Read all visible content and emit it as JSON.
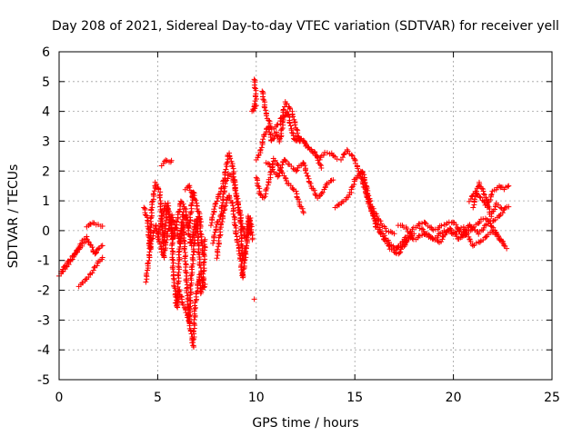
{
  "chart_data": {
    "type": "scatter",
    "title": "Day 208 of 2021, Sidereal Day-to-day VTEC variation (SDTVAR) for receiver yell",
    "xlabel": "GPS time / hours",
    "ylabel": "SDTVAR / TECUs",
    "xlim": [
      0,
      25
    ],
    "ylim": [
      -5,
      6
    ],
    "xticks": [
      0,
      5,
      10,
      15,
      20,
      25
    ],
    "yticks": [
      -5,
      -4,
      -3,
      -2,
      -1,
      0,
      1,
      2,
      3,
      4,
      5,
      6
    ],
    "grid": true,
    "marker": "+",
    "color": "#ff0000",
    "series": [
      {
        "name": "SDTVAR",
        "segments": [
          [
            [
              0.0,
              -1.5
            ],
            [
              0.3,
              -1.3
            ],
            [
              0.6,
              -1.0
            ],
            [
              0.9,
              -0.7
            ],
            [
              1.2,
              -0.45
            ],
            [
              1.4,
              -0.3
            ],
            [
              1.6,
              -0.45
            ],
            [
              1.8,
              -0.8
            ],
            [
              2.0,
              -0.6
            ],
            [
              2.2,
              -0.5
            ]
          ],
          [
            [
              0.1,
              -1.35
            ],
            [
              0.4,
              -1.1
            ],
            [
              0.7,
              -0.85
            ],
            [
              1.0,
              -0.6
            ],
            [
              1.2,
              -0.35
            ],
            [
              1.4,
              -0.2
            ]
          ],
          [
            [
              1.0,
              -1.85
            ],
            [
              1.3,
              -1.7
            ],
            [
              1.6,
              -1.45
            ],
            [
              1.9,
              -1.15
            ],
            [
              2.2,
              -0.9
            ]
          ],
          [
            [
              1.4,
              0.15
            ],
            [
              1.7,
              0.25
            ],
            [
              2.0,
              0.2
            ],
            [
              2.2,
              0.15
            ]
          ],
          [
            [
              4.3,
              0.8
            ],
            [
              4.5,
              0.3
            ],
            [
              4.6,
              -0.6
            ],
            [
              4.7,
              0.8
            ],
            [
              4.9,
              1.6
            ],
            [
              5.1,
              1.3
            ],
            [
              5.3,
              -0.5
            ],
            [
              5.5,
              0.9
            ],
            [
              5.7,
              0.2
            ],
            [
              5.8,
              -1.6
            ],
            [
              6.0,
              -2.6
            ],
            [
              6.1,
              -0.6
            ],
            [
              6.3,
              0.2
            ],
            [
              6.5,
              -2.1
            ],
            [
              6.6,
              -3.1
            ],
            [
              6.7,
              -1.6
            ],
            [
              6.9,
              -0.1
            ],
            [
              7.0,
              0.4
            ],
            [
              7.1,
              -0.9
            ],
            [
              7.3,
              -1.9
            ],
            [
              7.4,
              -0.3
            ]
          ],
          [
            [
              4.4,
              -1.7
            ],
            [
              4.5,
              -1.2
            ],
            [
              4.7,
              -0.3
            ],
            [
              4.9,
              0.2
            ],
            [
              5.1,
              -0.4
            ],
            [
              5.3,
              -0.9
            ],
            [
              5.5,
              -0.1
            ],
            [
              5.7,
              0.5
            ],
            [
              5.9,
              0.2
            ],
            [
              6.1,
              -0.4
            ],
            [
              6.3,
              0.6
            ],
            [
              6.5,
              0.2
            ],
            [
              6.7,
              -0.5
            ],
            [
              6.9,
              0.3
            ],
            [
              7.1,
              0.5
            ],
            [
              7.3,
              -0.8
            ]
          ],
          [
            [
              5.0,
              -0.2
            ],
            [
              5.2,
              0.4
            ],
            [
              5.4,
              0.9
            ],
            [
              5.6,
              0.5
            ],
            [
              5.8,
              -0.3
            ],
            [
              6.0,
              0.4
            ],
            [
              6.2,
              1.0
            ],
            [
              6.4,
              0.7
            ],
            [
              6.6,
              0.1
            ],
            [
              6.8,
              1.3
            ],
            [
              7.0,
              0.8
            ],
            [
              7.2,
              0.3
            ]
          ],
          [
            [
              5.9,
              -2.4
            ],
            [
              6.1,
              -2.0
            ],
            [
              6.3,
              -2.5
            ],
            [
              6.5,
              -2.8
            ],
            [
              6.7,
              -3.4
            ],
            [
              6.8,
              -3.9
            ],
            [
              6.9,
              -2.5
            ],
            [
              7.1,
              -1.5
            ],
            [
              7.2,
              -2.1
            ],
            [
              7.4,
              -1.8
            ]
          ],
          [
            [
              5.2,
              2.2
            ],
            [
              5.4,
              2.35
            ],
            [
              5.6,
              2.3
            ],
            [
              5.7,
              2.35
            ]
          ],
          [
            [
              6.4,
              1.4
            ],
            [
              6.6,
              1.5
            ],
            [
              6.8,
              1.1
            ]
          ],
          [
            [
              7.7,
              0.2
            ],
            [
              7.9,
              0.8
            ],
            [
              8.1,
              1.2
            ],
            [
              8.3,
              1.5
            ],
            [
              8.5,
              2.2
            ],
            [
              8.6,
              2.6
            ],
            [
              8.8,
              2.2
            ],
            [
              8.9,
              1.6
            ],
            [
              9.1,
              0.7
            ],
            [
              9.3,
              0.1
            ],
            [
              9.5,
              -0.3
            ],
            [
              9.6,
              0.5
            ],
            [
              9.7,
              -0.1
            ]
          ],
          [
            [
              7.8,
              -0.4
            ],
            [
              8.0,
              0.2
            ],
            [
              8.2,
              0.5
            ],
            [
              8.4,
              1.5
            ],
            [
              8.6,
              1.9
            ],
            [
              8.8,
              1.8
            ],
            [
              9.0,
              1.2
            ],
            [
              9.2,
              0.5
            ],
            [
              9.3,
              -1.0
            ],
            [
              9.5,
              -0.5
            ],
            [
              9.7,
              0.4
            ],
            [
              9.8,
              -0.3
            ]
          ],
          [
            [
              8.0,
              -0.9
            ],
            [
              8.2,
              0.1
            ],
            [
              8.4,
              0.8
            ],
            [
              8.6,
              1.2
            ],
            [
              8.8,
              0.9
            ],
            [
              9.0,
              -0.2
            ],
            [
              9.2,
              -0.9
            ],
            [
              9.3,
              -1.6
            ],
            [
              9.5,
              -0.6
            ]
          ],
          [
            [
              9.9,
              5.1
            ],
            [
              10.0,
              4.4
            ],
            [
              9.8,
              4.0
            ],
            [
              10.0,
              4.2
            ]
          ],
          [
            [
              9.9,
              -2.3
            ]
          ],
          [
            [
              10.0,
              2.4
            ],
            [
              10.2,
              2.6
            ],
            [
              10.4,
              3.2
            ],
            [
              10.6,
              3.5
            ],
            [
              10.8,
              3.0
            ],
            [
              11.0,
              3.3
            ],
            [
              11.2,
              3.0
            ],
            [
              11.4,
              3.8
            ],
            [
              11.6,
              4.0
            ],
            [
              11.8,
              3.3
            ],
            [
              12.0,
              3.0
            ],
            [
              12.3,
              3.1
            ],
            [
              12.6,
              2.8
            ],
            [
              13.0,
              2.6
            ],
            [
              13.3,
              2.1
            ]
          ],
          [
            [
              10.3,
              4.7
            ],
            [
              10.5,
              3.9
            ],
            [
              10.8,
              3.4
            ],
            [
              11.2,
              3.6
            ],
            [
              11.5,
              4.3
            ],
            [
              11.8,
              4.0
            ],
            [
              12.2,
              3.0
            ]
          ],
          [
            [
              10.0,
              1.8
            ],
            [
              10.2,
              1.2
            ],
            [
              10.4,
              1.1
            ],
            [
              10.7,
              1.8
            ],
            [
              10.9,
              2.4
            ],
            [
              11.2,
              2.1
            ],
            [
              11.6,
              1.6
            ],
            [
              12.0,
              1.3
            ],
            [
              12.2,
              0.9
            ],
            [
              12.4,
              0.6
            ]
          ],
          [
            [
              10.5,
              2.3
            ],
            [
              10.8,
              2.1
            ],
            [
              11.1,
              1.8
            ],
            [
              11.4,
              2.4
            ],
            [
              11.7,
              2.2
            ],
            [
              12.0,
              2.0
            ],
            [
              12.4,
              2.3
            ],
            [
              12.6,
              1.8
            ],
            [
              12.8,
              1.5
            ],
            [
              13.1,
              1.1
            ],
            [
              13.3,
              1.2
            ],
            [
              13.6,
              1.6
            ],
            [
              13.9,
              1.7
            ]
          ],
          [
            [
              12.0,
              3.2
            ],
            [
              12.5,
              2.9
            ],
            [
              12.9,
              2.6
            ],
            [
              13.2,
              2.4
            ],
            [
              13.5,
              2.6
            ],
            [
              13.8,
              2.6
            ],
            [
              14.1,
              2.4
            ]
          ],
          [
            [
              14.0,
              0.8
            ],
            [
              14.3,
              0.9
            ],
            [
              14.6,
              1.1
            ],
            [
              14.8,
              1.3
            ],
            [
              15.0,
              1.7
            ],
            [
              15.2,
              1.9
            ],
            [
              15.4,
              2.0
            ],
            [
              15.6,
              1.4
            ],
            [
              15.8,
              0.9
            ],
            [
              16.0,
              0.6
            ],
            [
              16.3,
              0.3
            ],
            [
              16.6,
              0.0
            ],
            [
              17.0,
              -0.1
            ]
          ],
          [
            [
              14.3,
              2.4
            ],
            [
              14.6,
              2.7
            ],
            [
              14.9,
              2.5
            ],
            [
              15.1,
              2.2
            ],
            [
              15.3,
              1.8
            ],
            [
              15.5,
              1.4
            ],
            [
              15.7,
              1.0
            ],
            [
              16.0,
              0.4
            ],
            [
              16.3,
              0.0
            ],
            [
              16.6,
              -0.3
            ],
            [
              17.0,
              -0.6
            ],
            [
              17.4,
              -0.5
            ],
            [
              17.8,
              -0.2
            ]
          ],
          [
            [
              15.3,
              2.0
            ],
            [
              15.5,
              1.6
            ],
            [
              15.7,
              0.9
            ],
            [
              15.9,
              0.6
            ],
            [
              16.1,
              0.1
            ],
            [
              16.4,
              -0.2
            ],
            [
              16.8,
              -0.6
            ],
            [
              17.2,
              -0.8
            ],
            [
              17.6,
              -0.4
            ],
            [
              18.0,
              -0.1
            ]
          ],
          [
            [
              17.2,
              0.2
            ],
            [
              17.6,
              0.1
            ],
            [
              18.0,
              -0.3
            ],
            [
              18.5,
              -0.1
            ],
            [
              19.0,
              -0.3
            ],
            [
              19.5,
              0.0
            ],
            [
              20.0,
              -0.1
            ],
            [
              20.5,
              0.1
            ],
            [
              21.0,
              -0.5
            ],
            [
              21.5,
              -0.3
            ],
            [
              22.0,
              0.0
            ],
            [
              22.5,
              -0.4
            ]
          ],
          [
            [
              17.0,
              -0.7
            ],
            [
              17.5,
              -0.3
            ],
            [
              18.0,
              0.1
            ],
            [
              18.5,
              0.3
            ],
            [
              19.0,
              0.0
            ],
            [
              19.5,
              0.2
            ],
            [
              20.0,
              0.3
            ],
            [
              20.5,
              -0.2
            ],
            [
              21.0,
              0.1
            ],
            [
              21.5,
              0.4
            ],
            [
              22.0,
              0.3
            ],
            [
              22.5,
              0.6
            ]
          ],
          [
            [
              18.3,
              0.1
            ],
            [
              18.8,
              -0.2
            ],
            [
              19.3,
              -0.4
            ],
            [
              19.8,
              0.1
            ],
            [
              20.3,
              -0.3
            ],
            [
              20.8,
              0.2
            ],
            [
              21.3,
              -0.1
            ],
            [
              21.8,
              0.3
            ],
            [
              22.3,
              -0.2
            ],
            [
              22.7,
              -0.6
            ]
          ],
          [
            [
              20.8,
              1.0
            ],
            [
              21.1,
              1.3
            ],
            [
              21.4,
              1.1
            ],
            [
              21.7,
              0.8
            ],
            [
              22.0,
              1.3
            ],
            [
              22.3,
              1.5
            ],
            [
              22.6,
              1.4
            ],
            [
              22.8,
              1.5
            ]
          ],
          [
            [
              21.0,
              0.8
            ],
            [
              21.3,
              1.6
            ],
            [
              21.6,
              1.2
            ],
            [
              21.9,
              0.5
            ],
            [
              22.2,
              0.9
            ],
            [
              22.5,
              0.7
            ],
            [
              22.8,
              0.8
            ]
          ]
        ]
      }
    ]
  }
}
